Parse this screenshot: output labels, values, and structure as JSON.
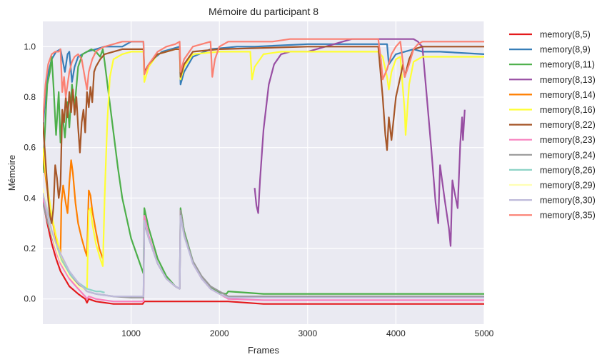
{
  "chart_data": {
    "type": "line",
    "title": "Mémoire du participant 8",
    "xlabel": "Frames",
    "ylabel": "Mémoire",
    "xlim": [
      0,
      5000
    ],
    "ylim": [
      -0.1,
      1.1
    ],
    "xticks": [
      1000,
      2000,
      3000,
      4000,
      5000
    ],
    "yticks": [
      0.0,
      0.2,
      0.4,
      0.6,
      0.8,
      1.0
    ],
    "xtick_labels": [
      "1000",
      "2000",
      "3000",
      "4000",
      "5000"
    ],
    "ytick_labels": [
      "0.0",
      "0.2",
      "0.4",
      "0.6",
      "0.8",
      "1.0"
    ],
    "grid": true,
    "legend_position": "outside-right",
    "series": [
      {
        "name": "memory(8,5)",
        "color": "#e41a1c",
        "x": [
          0,
          50,
          100,
          150,
          200,
          300,
          400,
          480,
          500,
          520,
          600,
          800,
          1000,
          1130,
          1150,
          1400,
          2000,
          2100,
          2500,
          3000,
          5000
        ],
        "y": [
          0.39,
          0.3,
          0.22,
          0.16,
          0.11,
          0.05,
          0.02,
          0.0,
          -0.015,
          0.0,
          -0.01,
          -0.02,
          -0.02,
          -0.02,
          -0.01,
          -0.01,
          -0.01,
          -0.01,
          -0.02,
          -0.02,
          -0.02
        ]
      },
      {
        "name": "memory(8,9)",
        "color": "#377eb8",
        "x": [
          0,
          50,
          100,
          150,
          200,
          250,
          280,
          300,
          330,
          360,
          400,
          450,
          500,
          600,
          700,
          800,
          900,
          950,
          1000,
          1050,
          1100,
          1140,
          1150,
          1170,
          1250,
          1350,
          1450,
          1550,
          1560,
          1600,
          1700,
          1900,
          2200,
          2400,
          3000,
          3300,
          3900,
          3920,
          4000,
          4100,
          4200,
          4300,
          4500,
          5000
        ],
        "y": [
          0.68,
          0.88,
          0.95,
          0.98,
          0.99,
          0.9,
          0.97,
          0.98,
          0.86,
          0.92,
          0.96,
          0.97,
          0.98,
          0.99,
          1.0,
          1.0,
          1.0,
          1.01,
          1.02,
          1.02,
          1.02,
          1.02,
          0.9,
          0.91,
          0.95,
          0.98,
          0.99,
          1.0,
          0.85,
          0.9,
          0.96,
          0.99,
          1.0,
          1.0,
          1.01,
          1.01,
          1.01,
          0.93,
          0.97,
          0.98,
          0.99,
          0.98,
          0.98,
          0.97
        ]
      },
      {
        "name": "memory(8,11)",
        "color": "#4daf4a",
        "x": [
          0,
          50,
          80,
          100,
          120,
          150,
          180,
          200,
          220,
          250,
          280,
          300,
          330,
          360,
          400,
          450,
          500,
          550,
          600,
          650,
          680,
          700,
          750,
          800,
          850,
          900,
          1000,
          1100,
          1140,
          1150,
          1200,
          1300,
          1400,
          1500,
          1550,
          1560,
          1600,
          1700,
          1800,
          1900,
          2000,
          2080,
          2100,
          2500,
          3000,
          5000
        ],
        "y": [
          0.5,
          0.85,
          0.9,
          0.96,
          0.85,
          0.65,
          0.82,
          0.62,
          0.74,
          0.64,
          0.78,
          0.68,
          0.85,
          0.76,
          0.92,
          0.97,
          0.98,
          0.99,
          0.98,
          0.96,
          0.99,
          0.94,
          0.8,
          0.66,
          0.52,
          0.4,
          0.24,
          0.14,
          0.1,
          0.36,
          0.28,
          0.16,
          0.09,
          0.05,
          0.04,
          0.36,
          0.27,
          0.15,
          0.08,
          0.045,
          0.025,
          0.02,
          0.03,
          0.02,
          0.02,
          0.02
        ]
      },
      {
        "name": "memory(8,13)",
        "color": "#984ea3",
        "x": [
          2400,
          2420,
          2440,
          2460,
          2500,
          2560,
          2620,
          2700,
          2800,
          3000,
          3500,
          3800,
          4100,
          4200,
          4250,
          4270,
          4300,
          4320,
          4350,
          4400,
          4450,
          4480,
          4500,
          4550,
          4600,
          4620,
          4640,
          4660,
          4700,
          4730,
          4750,
          4760,
          4780
        ],
        "y": [
          0.44,
          0.37,
          0.34,
          0.47,
          0.67,
          0.85,
          0.93,
          0.97,
          0.98,
          0.98,
          1.03,
          1.03,
          1.03,
          1.03,
          1.02,
          1.01,
          1.0,
          0.92,
          0.8,
          0.6,
          0.38,
          0.3,
          0.53,
          0.4,
          0.28,
          0.21,
          0.47,
          0.43,
          0.36,
          0.62,
          0.72,
          0.63,
          0.75
        ]
      },
      {
        "name": "memory(8,14)",
        "color": "#ff7f00",
        "x": [
          0,
          40,
          80,
          120,
          160,
          200,
          210,
          230,
          260,
          280,
          300,
          320,
          340,
          370,
          400,
          440,
          480,
          500,
          520,
          540,
          560,
          600,
          640,
          670,
          680
        ],
        "y": [
          0.58,
          0.46,
          0.36,
          0.29,
          0.22,
          0.18,
          0.38,
          0.45,
          0.38,
          0.34,
          0.46,
          0.55,
          0.5,
          0.38,
          0.3,
          0.24,
          0.19,
          0.17,
          0.43,
          0.41,
          0.35,
          0.27,
          0.2,
          0.17,
          0.16
        ]
      },
      {
        "name": "memory(8,16)",
        "color": "#ffff33",
        "x": [
          0,
          50,
          100,
          150,
          200,
          250,
          300,
          350,
          400,
          450,
          480,
          500,
          520,
          540,
          560,
          600,
          650,
          680,
          700,
          730,
          760,
          800,
          900,
          1000,
          1140,
          1150,
          1200,
          1300,
          1400,
          1500,
          1550,
          1560,
          1600,
          1700,
          2000,
          2350,
          2370,
          2400,
          2500,
          2700,
          3000,
          3800,
          3850,
          3900,
          3920,
          3950,
          4000,
          4050,
          4100,
          4110,
          4150,
          4200,
          4300,
          4500,
          5000
        ],
        "y": [
          0.6,
          0.45,
          0.33,
          0.25,
          0.18,
          0.13,
          0.09,
          0.07,
          0.05,
          0.04,
          0.04,
          0.04,
          0.35,
          0.36,
          0.3,
          0.22,
          0.16,
          0.13,
          0.4,
          0.7,
          0.88,
          0.95,
          0.97,
          0.98,
          0.98,
          0.86,
          0.92,
          0.97,
          0.98,
          0.99,
          0.99,
          0.87,
          0.92,
          0.97,
          0.98,
          0.98,
          0.87,
          0.92,
          0.97,
          0.98,
          0.98,
          0.98,
          0.96,
          0.88,
          0.83,
          0.9,
          0.95,
          0.96,
          0.74,
          0.65,
          0.85,
          0.94,
          0.96,
          0.96,
          0.96
        ]
      },
      {
        "name": "memory(8,22)",
        "color": "#a65628",
        "x": [
          0,
          30,
          60,
          80,
          100,
          120,
          140,
          160,
          180,
          200,
          220,
          240,
          260,
          280,
          300,
          320,
          340,
          360,
          380,
          400,
          420,
          440,
          460,
          480,
          500,
          520,
          540,
          560,
          580,
          600,
          650,
          700,
          800,
          900,
          1000,
          1140,
          1150,
          1200,
          1300,
          1400,
          1500,
          1550,
          1560,
          1600,
          1700,
          2000,
          3000,
          3800,
          3850,
          3880,
          3900,
          3920,
          3950,
          4000,
          4050,
          4080,
          4100,
          4150,
          4200,
          4300,
          4500,
          5000
        ],
        "y": [
          0.7,
          0.55,
          0.4,
          0.33,
          0.3,
          0.36,
          0.53,
          0.48,
          0.4,
          0.45,
          0.75,
          0.7,
          0.8,
          0.72,
          0.82,
          0.74,
          0.83,
          0.73,
          0.8,
          0.68,
          0.58,
          0.7,
          0.75,
          0.66,
          0.82,
          0.76,
          0.84,
          0.78,
          0.9,
          0.92,
          0.95,
          0.97,
          0.98,
          0.99,
          0.99,
          0.99,
          0.9,
          0.93,
          0.97,
          0.98,
          0.99,
          0.99,
          0.88,
          0.93,
          0.98,
          0.99,
          1.0,
          1.0,
          0.8,
          0.65,
          0.59,
          0.72,
          0.63,
          0.8,
          0.88,
          0.93,
          0.88,
          0.95,
          0.99,
          1.0,
          1.0,
          1.0
        ]
      },
      {
        "name": "memory(8,23)",
        "color": "#f781bf",
        "x": [
          0,
          50,
          100,
          150,
          200,
          300,
          400,
          480,
          500,
          520,
          600,
          800,
          1000,
          1140,
          1150,
          1200,
          1300,
          1400,
          1500,
          1550,
          1560,
          1600,
          1700,
          1800,
          1900,
          2000,
          2100,
          2500,
          3000,
          5000
        ],
        "y": [
          0.4,
          0.32,
          0.25,
          0.19,
          0.14,
          0.08,
          0.04,
          0.01,
          0.0,
          0.01,
          0.0,
          -0.01,
          -0.01,
          -0.01,
          0.33,
          0.25,
          0.14,
          0.08,
          0.05,
          0.04,
          0.35,
          0.26,
          0.14,
          0.08,
          0.04,
          0.02,
          0.0,
          -0.005,
          -0.005,
          -0.005
        ]
      },
      {
        "name": "memory(8,24)",
        "color": "#999999",
        "x": [
          0,
          50,
          100,
          150,
          200,
          300,
          400,
          500,
          600,
          800,
          1000,
          1140,
          1150,
          1200,
          1300,
          1400,
          1500,
          1550,
          1560,
          1600,
          1700,
          1800,
          1900,
          2000,
          2100,
          2500,
          3000,
          5000
        ],
        "y": [
          0.38,
          0.31,
          0.25,
          0.2,
          0.16,
          0.1,
          0.06,
          0.03,
          0.02,
          0.01,
          0.005,
          0.005,
          0.3,
          0.24,
          0.14,
          0.08,
          0.05,
          0.04,
          0.35,
          0.26,
          0.15,
          0.09,
          0.05,
          0.03,
          0.01,
          0.01,
          0.01,
          0.01
        ]
      },
      {
        "name": "memory(8,26)",
        "color": "#8dd3c7",
        "x": [
          0,
          50,
          100,
          150,
          200,
          300,
          400,
          500,
          600,
          650,
          700
        ],
        "y": [
          0.43,
          0.35,
          0.27,
          0.21,
          0.16,
          0.1,
          0.065,
          0.04,
          0.03,
          0.03,
          0.025
        ]
      },
      {
        "name": "memory(8,29)",
        "color": "#ffffb3",
        "x": [
          0,
          50,
          100,
          150,
          200,
          300,
          400,
          480
        ],
        "y": [
          0.44,
          0.34,
          0.26,
          0.2,
          0.15,
          0.09,
          0.05,
          0.035
        ]
      },
      {
        "name": "memory(8,30)",
        "color": "#bebada",
        "x": [
          0,
          50,
          100,
          150,
          200,
          300,
          400,
          500,
          600,
          800,
          1000,
          1140,
          1150,
          1200,
          1300,
          1400,
          1500,
          1550,
          1560,
          1600,
          1700,
          1800,
          1900,
          2000,
          2100,
          2500,
          3000,
          5000
        ],
        "y": [
          0.42,
          0.34,
          0.27,
          0.22,
          0.18,
          0.11,
          0.065,
          0.03,
          0.02,
          0.01,
          0.01,
          0.01,
          0.31,
          0.24,
          0.14,
          0.08,
          0.05,
          0.04,
          0.33,
          0.25,
          0.14,
          0.08,
          0.04,
          0.02,
          0.005,
          0.005,
          0.005,
          0.005
        ]
      },
      {
        "name": "memory(8,35)",
        "color": "#fb8072",
        "x": [
          0,
          30,
          60,
          100,
          140,
          180,
          200,
          220,
          240,
          260,
          280,
          300,
          330,
          360,
          400,
          440,
          480,
          500,
          520,
          560,
          600,
          640,
          700,
          800,
          900,
          1000,
          1100,
          1140,
          1150,
          1200,
          1300,
          1400,
          1500,
          1550,
          1560,
          1600,
          1700,
          1800,
          1900,
          1920,
          1950,
          2000,
          2100,
          2400,
          2600,
          2800,
          3000,
          3800,
          3830,
          3850,
          3900,
          3950,
          4000,
          4050,
          4100,
          4150,
          4200,
          4250,
          4300,
          4500,
          5000
        ],
        "y": [
          0.7,
          0.85,
          0.93,
          0.97,
          0.98,
          0.98,
          0.99,
          0.82,
          0.88,
          0.8,
          0.85,
          0.9,
          0.94,
          0.96,
          0.97,
          0.95,
          0.87,
          0.83,
          0.9,
          0.95,
          0.98,
          0.99,
          1.0,
          1.01,
          1.02,
          1.02,
          1.02,
          1.02,
          0.89,
          0.93,
          0.98,
          1.0,
          1.01,
          1.02,
          0.9,
          0.95,
          1.0,
          1.01,
          1.02,
          0.88,
          0.95,
          1.0,
          1.02,
          1.02,
          1.02,
          1.03,
          1.03,
          1.03,
          0.95,
          0.87,
          0.91,
          0.97,
          1.0,
          1.02,
          0.88,
          0.93,
          0.99,
          1.01,
          1.02,
          1.02,
          1.02
        ]
      }
    ]
  }
}
